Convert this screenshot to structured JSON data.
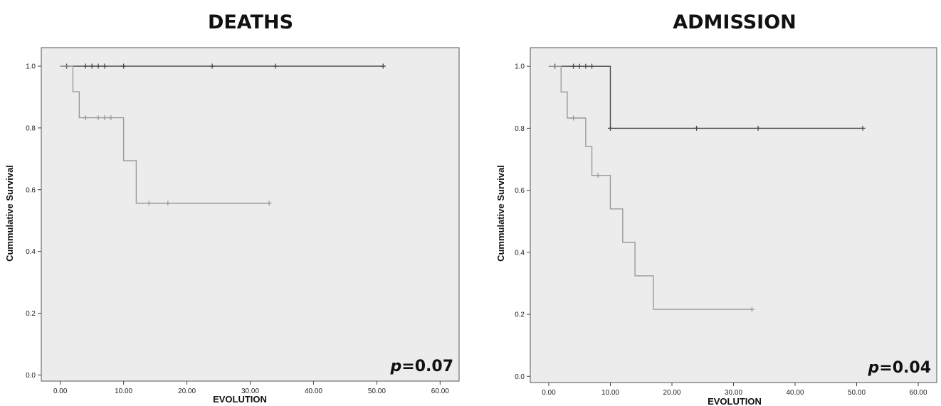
{
  "chart_data": [
    {
      "type": "line",
      "subtype": "kaplan-meier",
      "title": "DEATHS",
      "xlabel": "EVOLUTION",
      "ylabel": "Cummulative Survival",
      "xlim": [
        -3,
        63
      ],
      "ylim": [
        -0.02,
        1.06
      ],
      "xticks": [
        "0.00",
        "10.00",
        "20.00",
        "30.00",
        "40.00",
        "50.00",
        "60.00"
      ],
      "yticks": [
        "0.0",
        "0.2",
        "0.4",
        "0.6",
        "0.8",
        "1.0"
      ],
      "annotation": {
        "italic": "p",
        "rest": "=0.07"
      },
      "grid": false,
      "background": "#ececec",
      "series": [
        {
          "color": "#4a4a4a",
          "steps": [
            [
              0,
              1.0
            ],
            [
              51,
              1.0
            ]
          ],
          "censored": [
            [
              1,
              1.0
            ],
            [
              4,
              1.0
            ],
            [
              5,
              1.0
            ],
            [
              6,
              1.0
            ],
            [
              7,
              1.0
            ],
            [
              10,
              1.0
            ],
            [
              24,
              1.0
            ],
            [
              34,
              1.0
            ],
            [
              51,
              1.0
            ]
          ]
        },
        {
          "color": "#9a9a9a",
          "steps": [
            [
              0,
              1.0
            ],
            [
              2,
              0.917
            ],
            [
              3,
              0.833
            ],
            [
              10,
              0.694
            ],
            [
              12,
              0.556
            ],
            [
              33,
              0.556
            ]
          ],
          "censored": [
            [
              4,
              0.833
            ],
            [
              6,
              0.833
            ],
            [
              7,
              0.833
            ],
            [
              8,
              0.833
            ],
            [
              14,
              0.556
            ],
            [
              17,
              0.556
            ],
            [
              33,
              0.556
            ]
          ]
        }
      ]
    },
    {
      "type": "line",
      "subtype": "kaplan-meier",
      "title": "ADMISSION",
      "xlabel": "EVOLUTION",
      "ylabel": "Cummulative Survival",
      "xlim": [
        -3,
        63
      ],
      "ylim": [
        -0.02,
        1.06
      ],
      "xticks": [
        "0.00",
        "10.00",
        "20.00",
        "30.00",
        "40.00",
        "50.00",
        "60.00"
      ],
      "yticks": [
        "0.0",
        "0.2",
        "0.4",
        "0.6",
        "0.8",
        "1.0"
      ],
      "annotation": {
        "italic": "p",
        "rest": "=0.04"
      },
      "grid": false,
      "background": "#ececec",
      "series": [
        {
          "color": "#4a4a4a",
          "steps": [
            [
              0,
              1.0
            ],
            [
              10,
              0.8
            ],
            [
              51,
              0.8
            ]
          ],
          "censored": [
            [
              1,
              1.0
            ],
            [
              4,
              1.0
            ],
            [
              5,
              1.0
            ],
            [
              6,
              1.0
            ],
            [
              7,
              1.0
            ],
            [
              10,
              0.8
            ],
            [
              24,
              0.8
            ],
            [
              34,
              0.8
            ],
            [
              51,
              0.8
            ]
          ]
        },
        {
          "color": "#9a9a9a",
          "steps": [
            [
              0,
              1.0
            ],
            [
              2,
              0.917
            ],
            [
              3,
              0.833
            ],
            [
              6,
              0.741
            ],
            [
              7,
              0.648
            ],
            [
              10,
              0.54
            ],
            [
              12,
              0.432
            ],
            [
              14,
              0.324
            ],
            [
              17,
              0.216
            ],
            [
              33,
              0.216
            ]
          ],
          "censored": [
            [
              4,
              0.833
            ],
            [
              8,
              0.648
            ],
            [
              33,
              0.216
            ]
          ]
        }
      ]
    }
  ]
}
